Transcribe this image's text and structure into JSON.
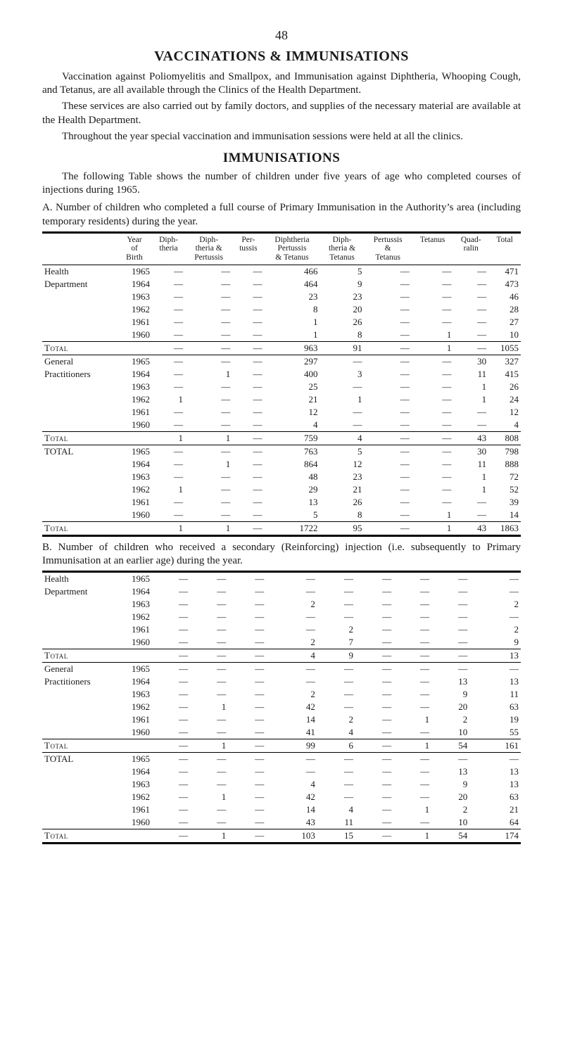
{
  "page_number": "48",
  "title": "VACCINATIONS & IMMUNISATIONS",
  "para1": "Vaccination against Poliomyelitis and Smallpox, and Immunisation against Diphtheria, Whooping Cough, and Tetanus, are all available through the Clinics of the Health Department.",
  "para2": "These services are also carried out by family doctors, and supplies of the necessary material are available at the Health Department.",
  "para3": "Throughout the year special vaccination and immunisation sessions were held at all the clinics.",
  "heading2": "IMMUNISATIONS",
  "para4": "The following Table shows the number of children under five years of age who completed courses of injections during 1965.",
  "section_a": "A.  Number of children who completed a full course of Primary Immunisation in the Authority’s area (including temporary residents) during the year.",
  "section_b": "B.  Number of children who received a secondary (Reinforcing) injection (i.e. subsequently to Primary Immunisation at an earlier age) during the year.",
  "columns": {
    "c1": "Year\nof\nBirth",
    "c2": "Diph-\ntheria",
    "c3": "Diph-\ntheria &\nPertussis",
    "c4": "Per-\ntussis",
    "c5": "Diphtheria\nPertussis\n& Tetanus",
    "c6": "Diph-\ntheria &\nTetanus",
    "c7": "Pertussis\n&\nTetanus",
    "c8": "Tetanus",
    "c9": "Quad-\nralin",
    "c10": "Total"
  },
  "labels": {
    "health": "Health",
    "department": "Department",
    "general": "General",
    "practitioners": "Practitioners",
    "total": "Total",
    "TOTAL": "TOTAL"
  },
  "dash": "—",
  "tableA": {
    "groups": [
      {
        "name_lines": [
          "Health",
          "Department"
        ],
        "rows": [
          {
            "year": "1965",
            "v": [
              "—",
              "—",
              "—",
              "466",
              "5",
              "—",
              "—",
              "—",
              "471"
            ]
          },
          {
            "year": "1964",
            "v": [
              "—",
              "—",
              "—",
              "464",
              "9",
              "—",
              "—",
              "—",
              "473"
            ]
          },
          {
            "year": "1963",
            "v": [
              "—",
              "—",
              "—",
              "23",
              "23",
              "—",
              "—",
              "—",
              "46"
            ]
          },
          {
            "year": "1962",
            "v": [
              "—",
              "—",
              "—",
              "8",
              "20",
              "—",
              "—",
              "—",
              "28"
            ]
          },
          {
            "year": "1961",
            "v": [
              "—",
              "—",
              "—",
              "1",
              "26",
              "—",
              "—",
              "—",
              "27"
            ]
          },
          {
            "year": "1960",
            "v": [
              "—",
              "—",
              "—",
              "1",
              "8",
              "—",
              "1",
              "—",
              "10"
            ]
          }
        ],
        "total_label": "Total",
        "total": [
          "—",
          "—",
          "—",
          "963",
          "91",
          "—",
          "1",
          "—",
          "1055"
        ]
      },
      {
        "name_lines": [
          "General",
          "Practitioners"
        ],
        "rows": [
          {
            "year": "1965",
            "v": [
              "—",
              "—",
              "—",
              "297",
              "—",
              "—",
              "—",
              "30",
              "327"
            ]
          },
          {
            "year": "1964",
            "v": [
              "—",
              "1",
              "—",
              "400",
              "3",
              "—",
              "—",
              "11",
              "415"
            ]
          },
          {
            "year": "1963",
            "v": [
              "—",
              "—",
              "—",
              "25",
              "—",
              "—",
              "—",
              "1",
              "26"
            ]
          },
          {
            "year": "1962",
            "v": [
              "1",
              "—",
              "—",
              "21",
              "1",
              "—",
              "—",
              "1",
              "24"
            ]
          },
          {
            "year": "1961",
            "v": [
              "—",
              "—",
              "—",
              "12",
              "—",
              "—",
              "—",
              "—",
              "12"
            ]
          },
          {
            "year": "1960",
            "v": [
              "—",
              "—",
              "—",
              "4",
              "—",
              "—",
              "—",
              "—",
              "4"
            ]
          }
        ],
        "total_label": "Total",
        "total": [
          "1",
          "1",
          "—",
          "759",
          "4",
          "—",
          "—",
          "43",
          "808"
        ]
      },
      {
        "name_lines": [
          "TOTAL",
          ""
        ],
        "rows": [
          {
            "year": "1965",
            "v": [
              "—",
              "—",
              "—",
              "763",
              "5",
              "—",
              "—",
              "30",
              "798"
            ]
          },
          {
            "year": "1964",
            "v": [
              "—",
              "1",
              "—",
              "864",
              "12",
              "—",
              "—",
              "11",
              "888"
            ]
          },
          {
            "year": "1963",
            "v": [
              "—",
              "—",
              "—",
              "48",
              "23",
              "—",
              "—",
              "1",
              "72"
            ]
          },
          {
            "year": "1962",
            "v": [
              "1",
              "—",
              "—",
              "29",
              "21",
              "—",
              "—",
              "1",
              "52"
            ]
          },
          {
            "year": "1961",
            "v": [
              "—",
              "—",
              "—",
              "13",
              "26",
              "—",
              "—",
              "—",
              "39"
            ]
          },
          {
            "year": "1960",
            "v": [
              "—",
              "—",
              "—",
              "5",
              "8",
              "—",
              "1",
              "—",
              "14"
            ]
          }
        ],
        "total_label": "Total",
        "total": [
          "1",
          "1",
          "—",
          "1722",
          "95",
          "—",
          "1",
          "43",
          "1863"
        ]
      }
    ]
  },
  "tableB": {
    "groups": [
      {
        "name_lines": [
          "Health",
          "Department"
        ],
        "rows": [
          {
            "year": "1965",
            "v": [
              "—",
              "—",
              "—",
              "—",
              "—",
              "—",
              "—",
              "—",
              "—"
            ]
          },
          {
            "year": "1964",
            "v": [
              "—",
              "—",
              "—",
              "—",
              "—",
              "—",
              "—",
              "—",
              "—"
            ]
          },
          {
            "year": "1963",
            "v": [
              "—",
              "—",
              "—",
              "2",
              "—",
              "—",
              "—",
              "—",
              "2"
            ]
          },
          {
            "year": "1962",
            "v": [
              "—",
              "—",
              "—",
              "—",
              "—",
              "—",
              "—",
              "—",
              "—"
            ]
          },
          {
            "year": "1961",
            "v": [
              "—",
              "—",
              "—",
              "—",
              "2",
              "—",
              "—",
              "—",
              "2"
            ]
          },
          {
            "year": "1960",
            "v": [
              "—",
              "—",
              "—",
              "2",
              "7",
              "—",
              "—",
              "—",
              "9"
            ]
          }
        ],
        "total_label": "Total",
        "total": [
          "—",
          "—",
          "—",
          "4",
          "9",
          "—",
          "—",
          "—",
          "13"
        ]
      },
      {
        "name_lines": [
          "General",
          "Practitioners"
        ],
        "rows": [
          {
            "year": "1965",
            "v": [
              "—",
              "—",
              "—",
              "—",
              "—",
              "—",
              "—",
              "—",
              "—"
            ]
          },
          {
            "year": "1964",
            "v": [
              "—",
              "—",
              "—",
              "—",
              "—",
              "—",
              "—",
              "13",
              "13"
            ]
          },
          {
            "year": "1963",
            "v": [
              "—",
              "—",
              "—",
              "2",
              "—",
              "—",
              "—",
              "9",
              "11"
            ]
          },
          {
            "year": "1962",
            "v": [
              "—",
              "1",
              "—",
              "42",
              "—",
              "—",
              "—",
              "20",
              "63"
            ]
          },
          {
            "year": "1961",
            "v": [
              "—",
              "—",
              "—",
              "14",
              "2",
              "—",
              "1",
              "2",
              "19"
            ]
          },
          {
            "year": "1960",
            "v": [
              "—",
              "—",
              "—",
              "41",
              "4",
              "—",
              "—",
              "10",
              "55"
            ]
          }
        ],
        "total_label": "Total",
        "total": [
          "—",
          "1",
          "—",
          "99",
          "6",
          "—",
          "1",
          "54",
          "161"
        ]
      },
      {
        "name_lines": [
          "TOTAL",
          ""
        ],
        "rows": [
          {
            "year": "1965",
            "v": [
              "—",
              "—",
              "—",
              "—",
              "—",
              "—",
              "—",
              "—",
              "—"
            ]
          },
          {
            "year": "1964",
            "v": [
              "—",
              "—",
              "—",
              "—",
              "—",
              "—",
              "—",
              "13",
              "13"
            ]
          },
          {
            "year": "1963",
            "v": [
              "—",
              "—",
              "—",
              "4",
              "—",
              "—",
              "—",
              "9",
              "13"
            ]
          },
          {
            "year": "1962",
            "v": [
              "—",
              "1",
              "—",
              "42",
              "—",
              "—",
              "—",
              "20",
              "63"
            ]
          },
          {
            "year": "1961",
            "v": [
              "—",
              "—",
              "—",
              "14",
              "4",
              "—",
              "1",
              "2",
              "21"
            ]
          },
          {
            "year": "1960",
            "v": [
              "—",
              "—",
              "—",
              "43",
              "11",
              "—",
              "—",
              "10",
              "64"
            ]
          }
        ],
        "total_label": "Total",
        "total": [
          "—",
          "1",
          "—",
          "103",
          "15",
          "—",
          "1",
          "54",
          "174"
        ]
      }
    ]
  }
}
